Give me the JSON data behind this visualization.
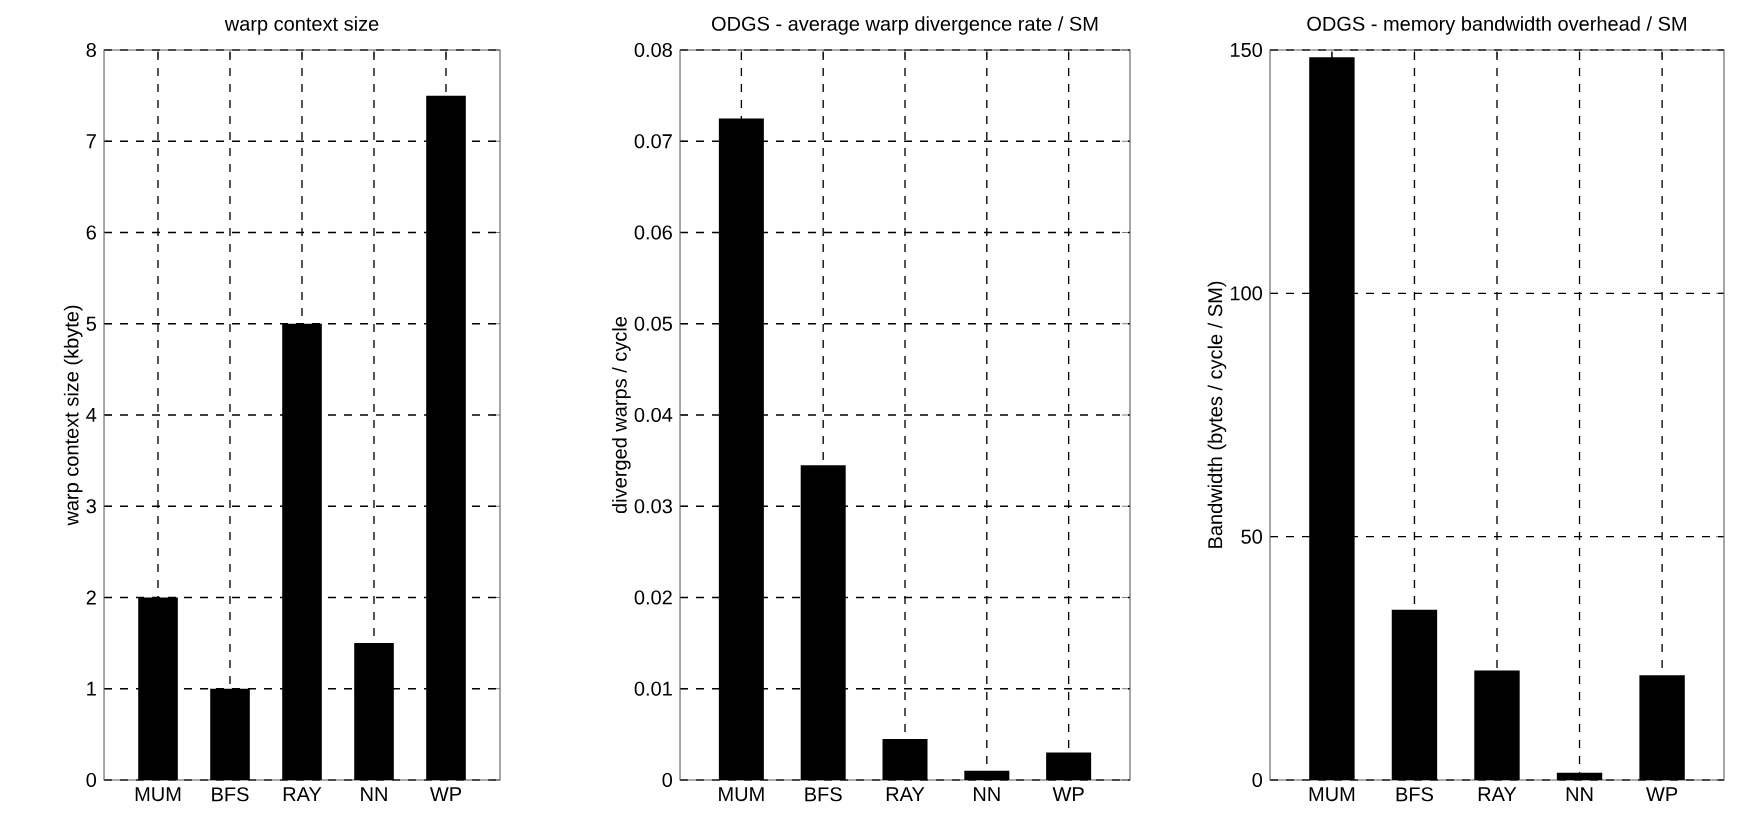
{
  "chart_data": [
    {
      "type": "bar",
      "title": "warp context size",
      "ylabel": "warp context size (kbyte)",
      "categories": [
        "MUM",
        "BFS",
        "RAY",
        "NN",
        "WP"
      ],
      "values": [
        2,
        1,
        5,
        1.5,
        7.5
      ],
      "color": "#000000",
      "ylim": [
        0,
        8
      ],
      "yticks": [
        0,
        1,
        2,
        3,
        4,
        5,
        6,
        7,
        8
      ],
      "grid": true
    },
    {
      "type": "bar",
      "title": "ODGS - average warp divergence rate / SM",
      "ylabel": "diverged warps / cycle",
      "categories": [
        "MUM",
        "BFS",
        "RAY",
        "NN",
        "WP"
      ],
      "values": [
        0.0725,
        0.0345,
        0.0045,
        0.001,
        0.003
      ],
      "color": "#000000",
      "ylim": [
        0,
        0.08
      ],
      "yticks": [
        0,
        0.01,
        0.02,
        0.03,
        0.04,
        0.05,
        0.06,
        0.07,
        0.08
      ],
      "grid": true
    },
    {
      "type": "bar",
      "title": "ODGS - memory bandwidth overhead / SM",
      "ylabel": "Bandwidth (bytes / cycle / SM)",
      "categories": [
        "MUM",
        "BFS",
        "RAY",
        "NN",
        "WP"
      ],
      "values": [
        148.5,
        35,
        22.5,
        1.5,
        21.5
      ],
      "color": "#000000",
      "ylim": [
        0,
        150
      ],
      "yticks": [
        0,
        50,
        100,
        150
      ],
      "grid": true
    }
  ]
}
